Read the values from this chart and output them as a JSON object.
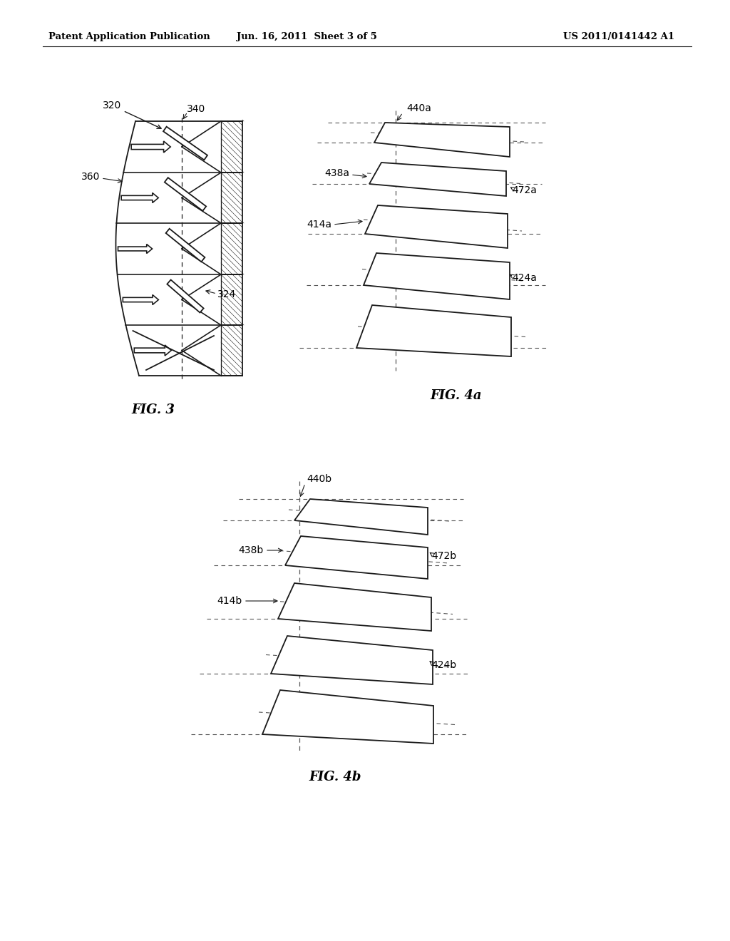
{
  "header_left": "Patent Application Publication",
  "header_center": "Jun. 16, 2011  Sheet 3 of 5",
  "header_right": "US 2011/0141442 A1",
  "fig3_label": "FIG. 3",
  "fig4a_label": "FIG. 4a",
  "fig4b_label": "FIG. 4b",
  "label_320": "320",
  "label_340": "340",
  "label_360": "360",
  "label_324": "324",
  "label_440a": "440a",
  "label_438a": "438a",
  "label_414a": "414a",
  "label_472a": "472a",
  "label_424a": "424a",
  "label_440b": "440b",
  "label_438b": "438b",
  "label_414b": "414b",
  "label_472b": "472b",
  "label_424b": "424b",
  "bg_color": "#ffffff",
  "line_color": "#1a1a1a",
  "line_width": 1.3,
  "dashed_color": "#555555"
}
